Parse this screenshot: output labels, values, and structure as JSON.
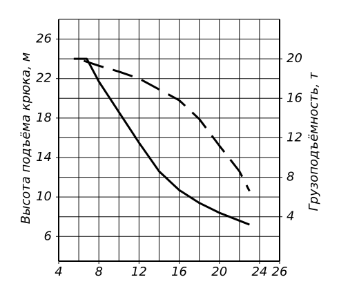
{
  "chart_data": {
    "type": "line",
    "y_label": "Высота подъёма крюка, м",
    "y2_label": "Грузоподъёмность, т",
    "xlim": [
      4,
      26
    ],
    "xticks": [
      4,
      8,
      12,
      16,
      20,
      24,
      26
    ],
    "xgrid": [
      4,
      6,
      8,
      10,
      12,
      14,
      16,
      18,
      20,
      22,
      24,
      26
    ],
    "ylim": [
      3.5,
      28
    ],
    "yticks": [
      6,
      10,
      14,
      18,
      22,
      26
    ],
    "ygrid": [
      6,
      8,
      10,
      12,
      14,
      16,
      18,
      20,
      22,
      24,
      26,
      28
    ],
    "y2lim": [
      -0.5,
      24
    ],
    "y2ticks": [
      4,
      8,
      12,
      16,
      20
    ],
    "grid": true,
    "series": [
      {
        "color": "#000000",
        "dashed": false,
        "x": [
          5.5,
          6.8,
          8,
          10,
          12,
          14,
          16,
          18,
          20,
          22,
          23
        ],
        "values": [
          24,
          24,
          21.7,
          18.6,
          15.5,
          12.6,
          10.7,
          9.4,
          8.4,
          7.6,
          7.2
        ]
      },
      {
        "color": "#000000",
        "dashed": true,
        "axis": "y2",
        "x": [
          6.5,
          8,
          10,
          12,
          14,
          16,
          18,
          20,
          22,
          23
        ],
        "values": [
          19.8,
          19.3,
          18.7,
          18,
          16.9,
          15.8,
          13.9,
          11.2,
          8.6,
          6.6
        ]
      }
    ]
  }
}
